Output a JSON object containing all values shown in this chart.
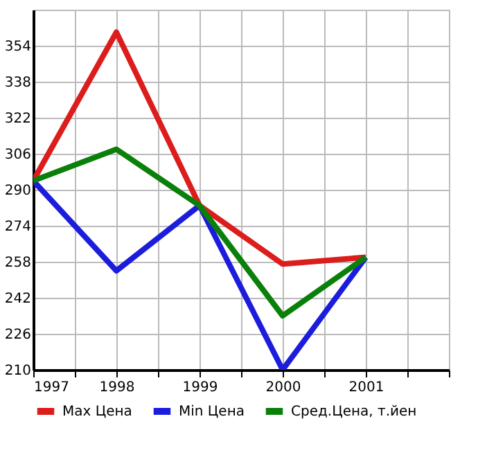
{
  "chart_data": {
    "type": "line",
    "x": [
      1997,
      1998,
      1999,
      2000,
      2001
    ],
    "series": [
      {
        "name": "Max Цена",
        "color": "#dd1c1c",
        "values": [
          294,
          360,
          283,
          257,
          260
        ]
      },
      {
        "name": "Min Цена",
        "color": "#1c1cdd",
        "values": [
          294,
          254,
          283,
          210,
          260
        ]
      },
      {
        "name": "Сред.Цена, т.йен",
        "color": "#0a800a",
        "values": [
          294,
          308,
          283,
          234,
          260
        ]
      }
    ],
    "xlim": [
      1997,
      2002
    ],
    "xticks": [
      1997,
      {
        "value": 1997.5,
        "label": null
      },
      1998,
      {
        "value": 1998.5,
        "label": null
      },
      1999,
      {
        "value": 1999.5,
        "label": null
      },
      2000,
      {
        "value": 2000.5,
        "label": null
      },
      2001,
      {
        "value": 2001.5,
        "label": null
      },
      {
        "value": 2002,
        "label": null
      }
    ],
    "ylim": [
      210,
      370
    ],
    "yticks": [
      210,
      226,
      242,
      258,
      274,
      290,
      306,
      322,
      338,
      354,
      {
        "value": 370,
        "label": null
      }
    ],
    "grid": true,
    "legend": "bottom",
    "marker": "none",
    "line_style": "solid"
  }
}
